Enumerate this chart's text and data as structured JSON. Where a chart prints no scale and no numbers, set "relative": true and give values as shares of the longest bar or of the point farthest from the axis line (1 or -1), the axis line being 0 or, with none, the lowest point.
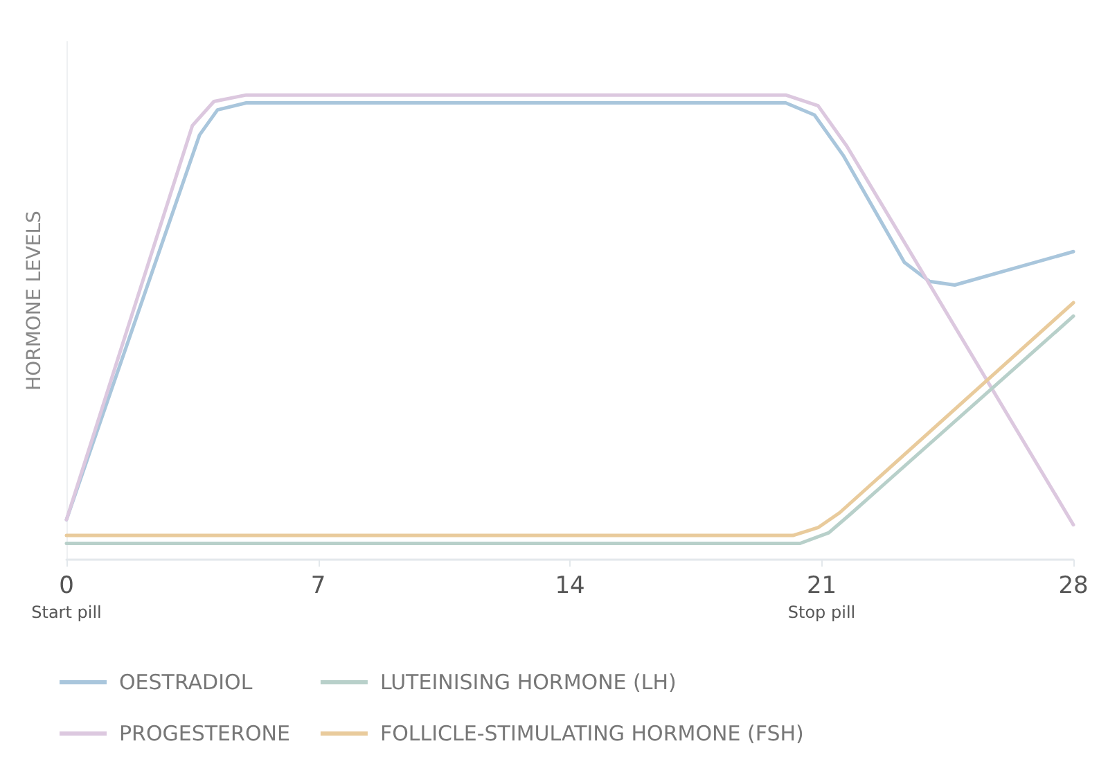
{
  "chart_data": {
    "type": "line",
    "relative": true,
    "ylabel": "HORMONE LEVELS",
    "xlim": [
      0,
      28
    ],
    "xticks": [
      {
        "value": 0,
        "label": "0\nStart pill"
      },
      7,
      14,
      {
        "value": 21,
        "label": "21\nStop pill"
      },
      28
    ],
    "legend": "bottom",
    "grid": false,
    "marker": "none",
    "line_style": "solid",
    "series": [
      {
        "name": "OESTRADIOL",
        "color": "#a9c6dc",
        "x": [
          0,
          3.7,
          4.2,
          5,
          20,
          20.8,
          21.6,
          23.3,
          24,
          24.7,
          28
        ],
        "values": [
          0.086,
          0.914,
          0.968,
          0.983,
          0.983,
          0.957,
          0.87,
          0.64,
          0.599,
          0.591,
          0.663
        ]
      },
      {
        "name": "PROGESTERONE",
        "color": "#dcc8df",
        "x": [
          0,
          3.5,
          4.1,
          5,
          20,
          20.9,
          21.7,
          28
        ],
        "values": [
          0.086,
          0.934,
          0.986,
          1,
          1,
          0.977,
          0.89,
          0.075
        ]
      },
      {
        "name": "LUTEINISING HORMONE (LH)",
        "color": "#b8d0ca",
        "x": [
          0,
          20.4,
          21.2,
          21.8,
          28
        ],
        "values": [
          0.035,
          0.035,
          0.058,
          0.098,
          0.524
        ]
      },
      {
        "name": "FOLLICLE-STIMULATING HORMONE (FSH)",
        "color": "#e9cb9c",
        "x": [
          0,
          20.2,
          20.9,
          21.5,
          28
        ],
        "values": [
          0.052,
          0.052,
          0.069,
          0.101,
          0.553
        ]
      }
    ]
  }
}
